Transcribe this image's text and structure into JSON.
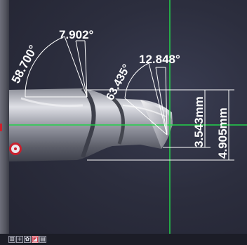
{
  "measurements": {
    "angle_tip_left": "58.700°",
    "angle_tip_top": "7.902°",
    "angle_second": "63.435°",
    "angle_second_top": "12.848°",
    "diameter_inner": "3.543mm",
    "diameter_outer": "4.905mm"
  },
  "toolbar": {
    "items": [
      "crosshair-tool",
      "add-point-tool",
      "settings-tool",
      "image-tool",
      "grid-tool"
    ],
    "glyphs": [
      "⊞",
      "+",
      "✿",
      "◪",
      "▤"
    ]
  },
  "colors": {
    "crosshair": "#22d24a",
    "measure_lines": "#ffffff",
    "target": "#c8202e"
  }
}
